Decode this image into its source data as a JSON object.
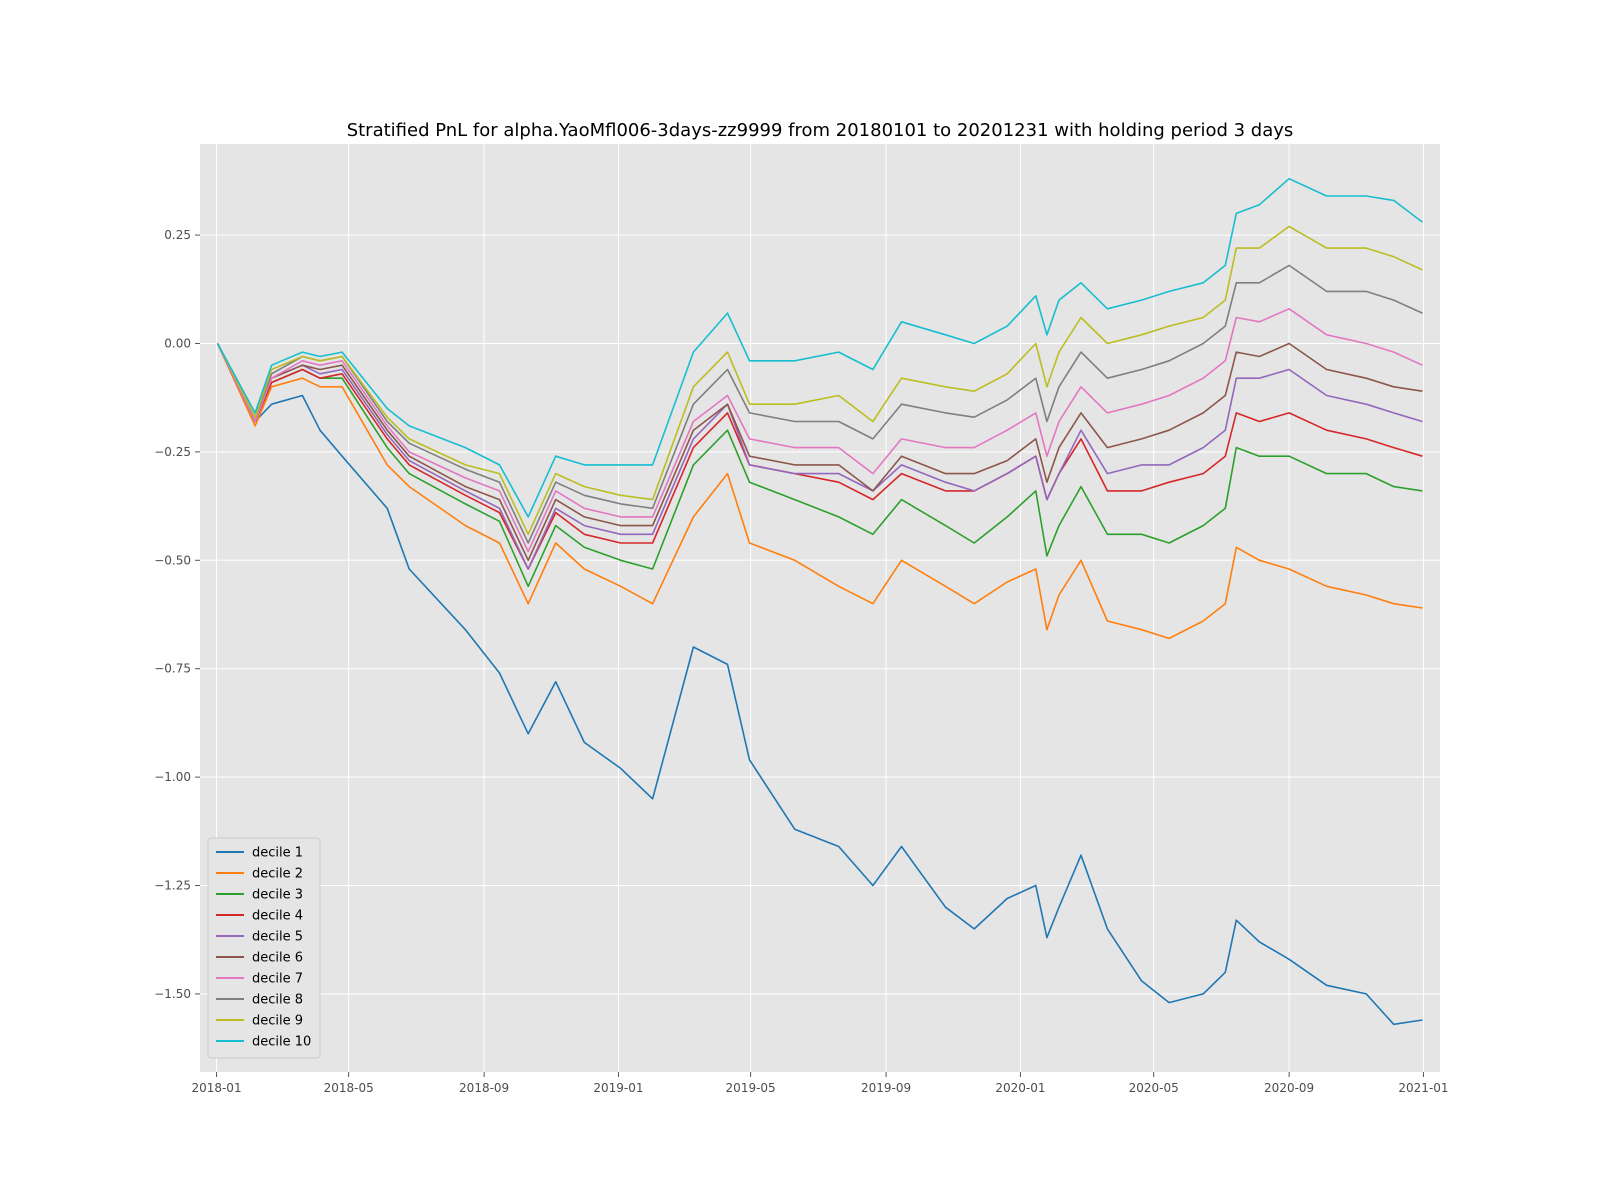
{
  "chart_data": {
    "type": "line",
    "title": "Stratified PnL for alpha.YaoMfl006-3days-zz9999 from 20180101 to 20201231 with holding period 3 days",
    "xlabel": "",
    "ylabel": "",
    "x_range": [
      "2017-12-17",
      "2021-01-16"
    ],
    "ylim": [
      -1.68,
      0.46
    ],
    "grid": true,
    "legend_position": "lower-left",
    "x_ticks": [
      "2018-01",
      "2018-05",
      "2018-09",
      "2019-01",
      "2019-05",
      "2019-09",
      "2020-01",
      "2020-05",
      "2020-09",
      "2021-01"
    ],
    "y_ticks": [
      0.25,
      0.0,
      -0.25,
      -0.5,
      -0.75,
      -1.0,
      -1.25,
      -1.5
    ],
    "y_tick_labels": [
      "0.25",
      "0.00",
      "−0.25",
      "−0.50",
      "−0.75",
      "−1.00",
      "−1.25",
      "−1.50"
    ],
    "x": [
      "2018-01-02",
      "2018-02-05",
      "2018-02-20",
      "2018-03-20",
      "2018-04-05",
      "2018-04-25",
      "2018-06-05",
      "2018-06-25",
      "2018-08-15",
      "2018-09-15",
      "2018-10-11",
      "2018-11-05",
      "2018-12-01",
      "2019-01-03",
      "2019-02-01",
      "2019-03-10",
      "2019-04-10",
      "2019-04-30",
      "2019-06-10",
      "2019-07-20",
      "2019-08-20",
      "2019-09-15",
      "2019-10-25",
      "2019-11-20",
      "2019-12-20",
      "2020-01-15",
      "2020-01-25",
      "2020-02-05",
      "2020-02-25",
      "2020-03-20",
      "2020-04-20",
      "2020-05-15",
      "2020-06-15",
      "2020-07-05",
      "2020-07-15",
      "2020-08-05",
      "2020-09-01",
      "2020-10-05",
      "2020-11-10",
      "2020-12-05",
      "2020-12-31"
    ],
    "series": [
      {
        "name": "decile 1",
        "color": "#1f77b4",
        "values": [
          0.0,
          -0.18,
          -0.14,
          -0.12,
          -0.2,
          -0.26,
          -0.38,
          -0.52,
          -0.66,
          -0.76,
          -0.9,
          -0.78,
          -0.92,
          -0.98,
          -1.05,
          -0.7,
          -0.74,
          -0.96,
          -1.12,
          -1.16,
          -1.25,
          -1.16,
          -1.3,
          -1.35,
          -1.28,
          -1.25,
          -1.37,
          -1.3,
          -1.18,
          -1.35,
          -1.47,
          -1.52,
          -1.5,
          -1.45,
          -1.33,
          -1.38,
          -1.42,
          -1.48,
          -1.5,
          -1.57,
          -1.56
        ]
      },
      {
        "name": "decile 2",
        "color": "#ff7f0e",
        "values": [
          0.0,
          -0.19,
          -0.1,
          -0.08,
          -0.1,
          -0.1,
          -0.28,
          -0.33,
          -0.42,
          -0.46,
          -0.6,
          -0.46,
          -0.52,
          -0.56,
          -0.6,
          -0.4,
          -0.3,
          -0.46,
          -0.5,
          -0.56,
          -0.6,
          -0.5,
          -0.56,
          -0.6,
          -0.55,
          -0.52,
          -0.66,
          -0.58,
          -0.5,
          -0.64,
          -0.66,
          -0.68,
          -0.64,
          -0.6,
          -0.47,
          -0.5,
          -0.52,
          -0.56,
          -0.58,
          -0.6,
          -0.61
        ]
      },
      {
        "name": "decile 3",
        "color": "#2ca02c",
        "values": [
          0.0,
          -0.18,
          -0.09,
          -0.06,
          -0.08,
          -0.08,
          -0.24,
          -0.3,
          -0.37,
          -0.41,
          -0.56,
          -0.42,
          -0.47,
          -0.5,
          -0.52,
          -0.28,
          -0.2,
          -0.32,
          -0.36,
          -0.4,
          -0.44,
          -0.36,
          -0.42,
          -0.46,
          -0.4,
          -0.34,
          -0.49,
          -0.42,
          -0.33,
          -0.44,
          -0.44,
          -0.46,
          -0.42,
          -0.38,
          -0.24,
          -0.26,
          -0.26,
          -0.3,
          -0.3,
          -0.33,
          -0.34
        ]
      },
      {
        "name": "decile 4",
        "color": "#d62728",
        "values": [
          0.0,
          -0.18,
          -0.09,
          -0.06,
          -0.08,
          -0.07,
          -0.22,
          -0.28,
          -0.35,
          -0.39,
          -0.52,
          -0.39,
          -0.44,
          -0.46,
          -0.46,
          -0.24,
          -0.16,
          -0.28,
          -0.3,
          -0.32,
          -0.36,
          -0.3,
          -0.34,
          -0.34,
          -0.3,
          -0.26,
          -0.36,
          -0.3,
          -0.22,
          -0.34,
          -0.34,
          -0.32,
          -0.3,
          -0.26,
          -0.16,
          -0.18,
          -0.16,
          -0.2,
          -0.22,
          -0.24,
          -0.26
        ]
      },
      {
        "name": "decile 5",
        "color": "#9467bd",
        "values": [
          0.0,
          -0.18,
          -0.08,
          -0.05,
          -0.07,
          -0.06,
          -0.21,
          -0.27,
          -0.34,
          -0.38,
          -0.52,
          -0.38,
          -0.42,
          -0.44,
          -0.44,
          -0.22,
          -0.14,
          -0.28,
          -0.3,
          -0.3,
          -0.34,
          -0.28,
          -0.32,
          -0.34,
          -0.3,
          -0.26,
          -0.36,
          -0.3,
          -0.2,
          -0.3,
          -0.28,
          -0.28,
          -0.24,
          -0.2,
          -0.08,
          -0.08,
          -0.06,
          -0.12,
          -0.14,
          -0.16,
          -0.18
        ]
      },
      {
        "name": "decile 6",
        "color": "#8c564b",
        "values": [
          0.0,
          -0.18,
          -0.08,
          -0.05,
          -0.06,
          -0.05,
          -0.2,
          -0.26,
          -0.33,
          -0.36,
          -0.5,
          -0.36,
          -0.4,
          -0.42,
          -0.42,
          -0.2,
          -0.14,
          -0.26,
          -0.28,
          -0.28,
          -0.34,
          -0.26,
          -0.3,
          -0.3,
          -0.27,
          -0.22,
          -0.32,
          -0.24,
          -0.16,
          -0.24,
          -0.22,
          -0.2,
          -0.16,
          -0.12,
          -0.02,
          -0.03,
          0.0,
          -0.06,
          -0.08,
          -0.1,
          -0.11
        ]
      },
      {
        "name": "decile 7",
        "color": "#e377c2",
        "values": [
          0.0,
          -0.18,
          -0.08,
          -0.04,
          -0.05,
          -0.04,
          -0.19,
          -0.25,
          -0.31,
          -0.34,
          -0.48,
          -0.34,
          -0.38,
          -0.4,
          -0.4,
          -0.18,
          -0.12,
          -0.22,
          -0.24,
          -0.24,
          -0.3,
          -0.22,
          -0.24,
          -0.24,
          -0.2,
          -0.16,
          -0.26,
          -0.18,
          -0.1,
          -0.16,
          -0.14,
          -0.12,
          -0.08,
          -0.04,
          0.06,
          0.05,
          0.08,
          0.02,
          0.0,
          -0.02,
          -0.05
        ]
      },
      {
        "name": "decile 8",
        "color": "#7f7f7f",
        "values": [
          0.0,
          -0.17,
          -0.07,
          -0.03,
          -0.04,
          -0.03,
          -0.18,
          -0.23,
          -0.29,
          -0.32,
          -0.46,
          -0.32,
          -0.35,
          -0.37,
          -0.38,
          -0.14,
          -0.06,
          -0.16,
          -0.18,
          -0.18,
          -0.22,
          -0.14,
          -0.16,
          -0.17,
          -0.13,
          -0.08,
          -0.18,
          -0.1,
          -0.02,
          -0.08,
          -0.06,
          -0.04,
          0.0,
          0.04,
          0.14,
          0.14,
          0.18,
          0.12,
          0.12,
          0.1,
          0.07
        ]
      },
      {
        "name": "decile 9",
        "color": "#bcbd22",
        "values": [
          0.0,
          -0.17,
          -0.06,
          -0.03,
          -0.04,
          -0.03,
          -0.17,
          -0.22,
          -0.28,
          -0.3,
          -0.44,
          -0.3,
          -0.33,
          -0.35,
          -0.36,
          -0.1,
          -0.02,
          -0.14,
          -0.14,
          -0.12,
          -0.18,
          -0.08,
          -0.1,
          -0.11,
          -0.07,
          0.0,
          -0.1,
          -0.02,
          0.06,
          0.0,
          0.02,
          0.04,
          0.06,
          0.1,
          0.22,
          0.22,
          0.27,
          0.22,
          0.22,
          0.2,
          0.17
        ]
      },
      {
        "name": "decile 10",
        "color": "#17becf",
        "values": [
          0.0,
          -0.16,
          -0.05,
          -0.02,
          -0.03,
          -0.02,
          -0.15,
          -0.19,
          -0.24,
          -0.28,
          -0.4,
          -0.26,
          -0.28,
          -0.28,
          -0.28,
          -0.02,
          0.07,
          -0.04,
          -0.04,
          -0.02,
          -0.06,
          0.05,
          0.02,
          0.0,
          0.04,
          0.11,
          0.02,
          0.1,
          0.14,
          0.08,
          0.1,
          0.12,
          0.14,
          0.18,
          0.3,
          0.32,
          0.38,
          0.34,
          0.34,
          0.33,
          0.28
        ]
      }
    ]
  }
}
